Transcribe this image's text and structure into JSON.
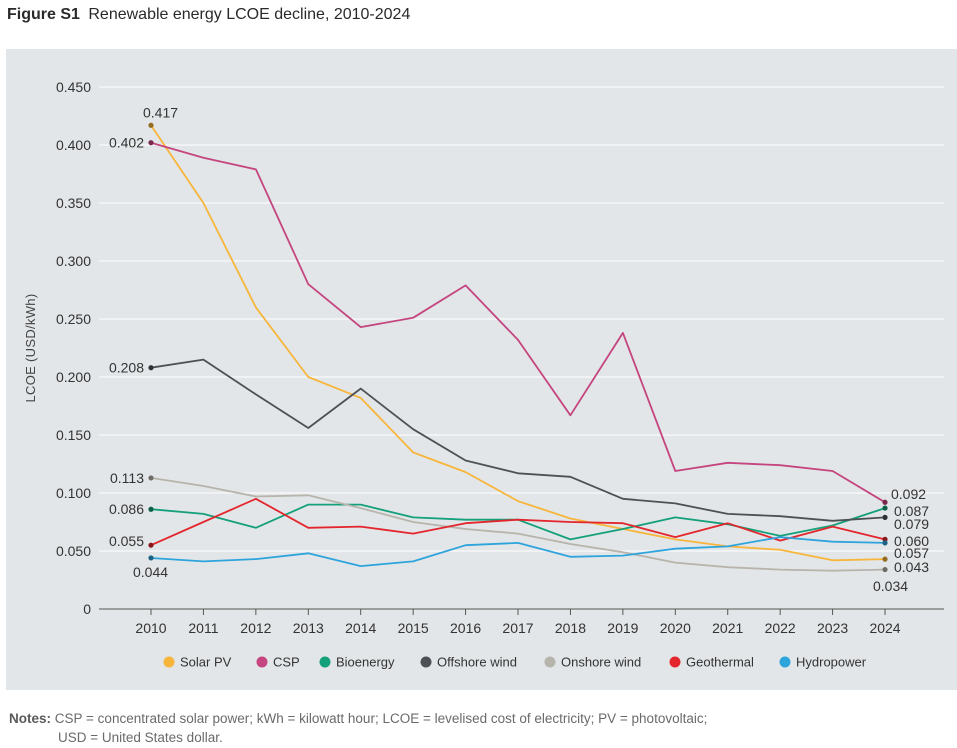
{
  "figure": {
    "label": "Figure S1",
    "title": "Renewable energy LCOE decline, 2010-2024"
  },
  "notes": {
    "heading": "Notes:",
    "line1": "CSP = concentrated solar power; kWh = kilowatt hour; LCOE = levelised cost of electricity; PV = photovoltaic;",
    "line2": "USD = United States dollar."
  },
  "chart_data": {
    "type": "line",
    "title": "Renewable energy LCOE decline, 2010-2024",
    "xlabel": "",
    "ylabel": "LCOE (USD/kWh)",
    "ylim": [
      0,
      0.45
    ],
    "yticks": [
      {
        "value": 0,
        "label": "0"
      },
      {
        "value": 0.05,
        "label": "0.050"
      },
      {
        "value": 0.1,
        "label": "0.100"
      },
      {
        "value": 0.15,
        "label": "0.150"
      },
      {
        "value": 0.2,
        "label": "0.200"
      },
      {
        "value": 0.25,
        "label": "0.250"
      },
      {
        "value": 0.3,
        "label": "0.300"
      },
      {
        "value": 0.35,
        "label": "0.350"
      },
      {
        "value": 0.4,
        "label": "0.400"
      },
      {
        "value": 0.45,
        "label": "0.450"
      }
    ],
    "grid": true,
    "legend_position": "bottom",
    "x": [
      "2010",
      "2011",
      "2012",
      "2013",
      "2014",
      "2015",
      "2016",
      "2017",
      "2018",
      "2019",
      "2020",
      "2021",
      "2022",
      "2023",
      "2024"
    ],
    "series": [
      {
        "name": "Solar PV",
        "color": "#f7b53b",
        "values": [
          0.417,
          0.35,
          0.26,
          0.2,
          0.182,
          0.135,
          0.118,
          0.093,
          0.078,
          0.069,
          0.06,
          0.054,
          0.051,
          0.042,
          0.043
        ],
        "start_label": "0.417",
        "end_label": "0.043"
      },
      {
        "name": "CSP",
        "color": "#c4457f",
        "values": [
          0.402,
          0.389,
          0.379,
          0.28,
          0.243,
          0.251,
          0.279,
          0.232,
          0.167,
          0.238,
          0.119,
          0.126,
          0.124,
          0.119,
          0.092
        ],
        "start_label": "0.402",
        "end_label": "0.092"
      },
      {
        "name": "Bioenergy",
        "color": "#14a07a",
        "values": [
          0.086,
          0.082,
          0.07,
          0.09,
          0.09,
          0.079,
          0.077,
          0.077,
          0.06,
          0.069,
          0.079,
          0.073,
          0.063,
          0.072,
          0.087
        ],
        "start_label": "0.086",
        "end_label": "0.087"
      },
      {
        "name": "Offshore wind",
        "color": "#4d5156",
        "values": [
          0.208,
          0.215,
          0.185,
          0.156,
          0.19,
          0.155,
          0.128,
          0.117,
          0.114,
          0.095,
          0.091,
          0.082,
          0.08,
          0.076,
          0.079
        ],
        "start_label": "0.208",
        "end_label": "0.079"
      },
      {
        "name": "Onshore wind",
        "color": "#b7b4ac",
        "values": [
          0.113,
          0.106,
          0.097,
          0.098,
          0.087,
          0.075,
          0.069,
          0.065,
          0.056,
          0.049,
          0.04,
          0.036,
          0.034,
          0.033,
          0.034
        ],
        "start_label": "0.113",
        "end_label": "0.034"
      },
      {
        "name": "Geothermal",
        "color": "#e3262d",
        "values": [
          0.055,
          0.075,
          0.095,
          0.07,
          0.071,
          0.065,
          0.074,
          0.077,
          0.075,
          0.074,
          0.062,
          0.074,
          0.059,
          0.071,
          0.06
        ],
        "start_label": "0.055",
        "end_label": "0.060"
      },
      {
        "name": "Hydropower",
        "color": "#2ea4dd",
        "values": [
          0.044,
          0.041,
          0.043,
          0.048,
          0.037,
          0.041,
          0.055,
          0.057,
          0.045,
          0.046,
          0.052,
          0.054,
          0.062,
          0.058,
          0.057
        ],
        "start_label": "0.044",
        "end_label": "0.057"
      }
    ]
  }
}
